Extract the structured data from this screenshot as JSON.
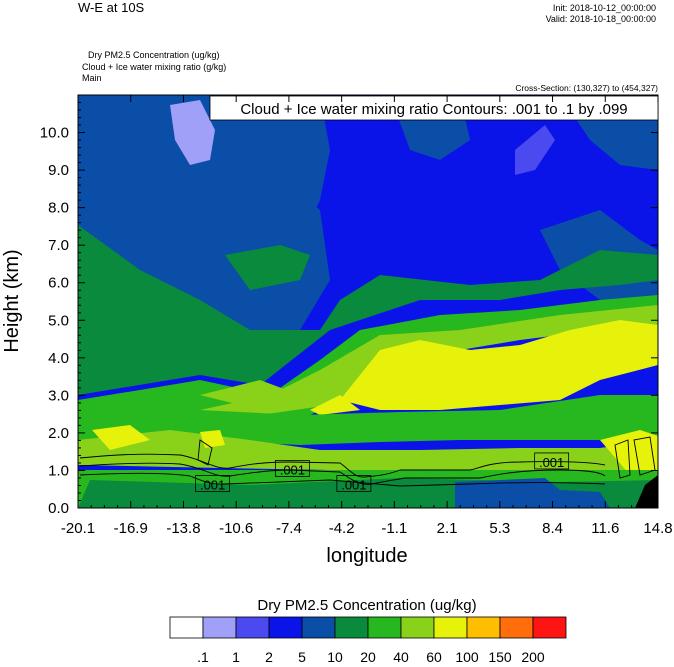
{
  "header": {
    "main_title": "W-E at 10S",
    "init_time": "Init: 2018-10-12_00:00:00",
    "valid_time": "Valid: 2018-10-18_00:00:00",
    "var_line1": "Dry PM2.5 Concentration   (ug/kg)",
    "var_line2": "Cloud + Ice water mixing ratio   (g/kg)",
    "var_line3": "Main",
    "cross_section": "Cross-Section: (130,327) to (454,327)"
  },
  "chart_data": {
    "type": "heatmap",
    "subtitle": "Cloud + Ice water mixing ratio Contours: .001 to .1 by .099",
    "xlabel": "longitude",
    "ylabel": "Height (km)",
    "xlim": [
      -20.1,
      14.8
    ],
    "ylim": [
      0.0,
      11.0
    ],
    "x_ticks": [
      "-20.1",
      "-16.9",
      "-13.8",
      "-10.6",
      "-7.4",
      "-4.2",
      "-1.1",
      "2.1",
      "5.3",
      "8.4",
      "11.6",
      "14.8"
    ],
    "y_ticks": [
      "0.0",
      "1.0",
      "2.0",
      "3.0",
      "4.0",
      "5.0",
      "6.0",
      "7.0",
      "8.0",
      "9.0",
      "10.0"
    ],
    "y_tick_values": [
      0,
      1,
      2,
      3,
      4,
      5,
      6,
      7,
      8,
      9,
      10
    ],
    "colorbar": {
      "title": "Dry PM2.5 Concentration  (ug/kg)",
      "labels": [
        ".1",
        "1",
        "2",
        "5",
        "10",
        "20",
        "40",
        "60",
        "100",
        "150",
        "200"
      ],
      "colors": [
        "#ffffff",
        "#a0a0f8",
        "#4a4af0",
        "#0a14e8",
        "#0a4ea8",
        "#0a8a3c",
        "#26b81e",
        "#8ad21a",
        "#e6f20a",
        "#ffbe00",
        "#ff6e0a",
        "#ff1414"
      ]
    },
    "contour_labels": [
      {
        "text": ".001",
        "x": -12.0,
        "y": 0.6
      },
      {
        "text": ".001",
        "x": -7.2,
        "y": 1.0
      },
      {
        "text": ".001",
        "x": -3.5,
        "y": 0.6
      },
      {
        "text": ".001",
        "x": 8.4,
        "y": 1.2
      }
    ]
  }
}
